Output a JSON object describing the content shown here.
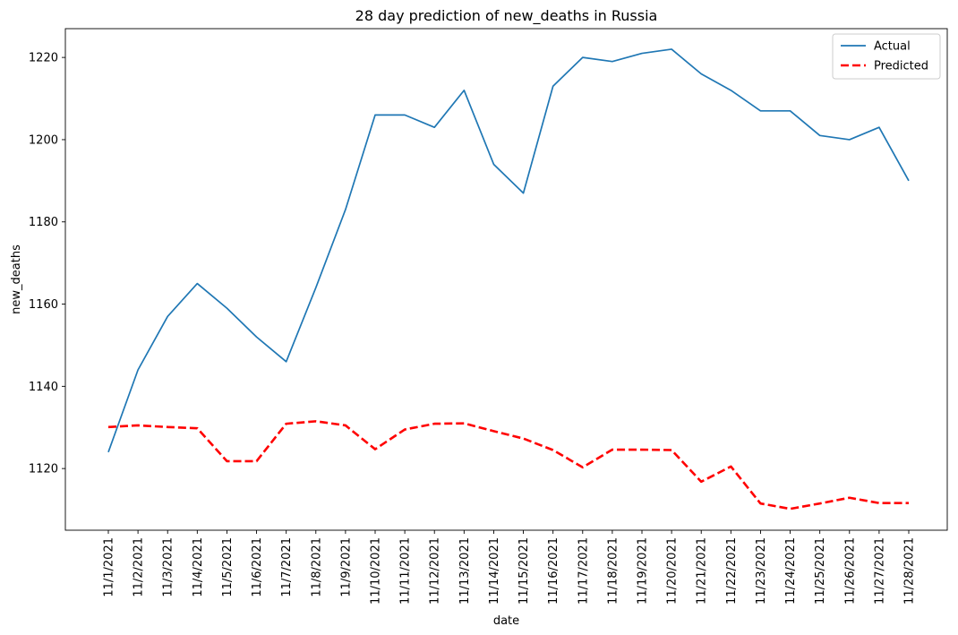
{
  "chart_data": {
    "type": "line",
    "title": "28 day prediction of new_deaths in Russia",
    "xlabel": "date",
    "ylabel": "new_deaths",
    "categories": [
      "11/1/2021",
      "11/2/2021",
      "11/3/2021",
      "11/4/2021",
      "11/5/2021",
      "11/6/2021",
      "11/7/2021",
      "11/8/2021",
      "11/9/2021",
      "11/10/2021",
      "11/11/2021",
      "11/12/2021",
      "11/13/2021",
      "11/14/2021",
      "11/15/2021",
      "11/16/2021",
      "11/17/2021",
      "11/18/2021",
      "11/19/2021",
      "11/20/2021",
      "11/21/2021",
      "11/22/2021",
      "11/23/2021",
      "11/24/2021",
      "11/25/2021",
      "11/26/2021",
      "11/27/2021",
      "11/28/2021"
    ],
    "ylim": [
      1105,
      1227
    ],
    "yticks": [
      1120,
      1140,
      1160,
      1180,
      1200,
      1220
    ],
    "grid": false,
    "legend_position": "top-right",
    "series": [
      {
        "name": "Actual",
        "color": "#1f77b4",
        "style": "solid",
        "values": [
          1124,
          1144,
          1157,
          1165,
          1159,
          1152,
          1146,
          1164,
          1183,
          1206,
          1206,
          1203,
          1212,
          1194,
          1187,
          1213,
          1220,
          1219,
          1221,
          1222,
          1216,
          1212,
          1207,
          1207,
          1201,
          1200,
          1203,
          1190
        ]
      },
      {
        "name": "Predicted",
        "color": "#ff0000",
        "style": "dashed",
        "values": [
          1130.1,
          1130.5,
          1130.1,
          1129.8,
          1121.8,
          1121.8,
          1130.9,
          1131.5,
          1130.5,
          1124.7,
          1129.5,
          1130.9,
          1131.0,
          1129.1,
          1127.3,
          1124.5,
          1120.3,
          1124.6,
          1124.6,
          1124.5,
          1116.8,
          1120.5,
          1111.5,
          1110.2,
          1111.5,
          1112.9,
          1111.6,
          1111.6
        ]
      }
    ]
  }
}
